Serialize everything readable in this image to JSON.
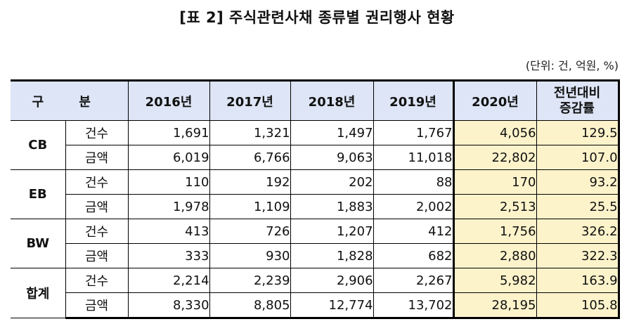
{
  "title": "[표  2] 주식관련사채 종류별 권리행사 현황",
  "unit": "(단위: 건, 억원, %)",
  "table": {
    "headers": {
      "category": "구 분",
      "years": [
        "2016년",
        "2017년",
        "2018년",
        "2019년",
        "2020년"
      ],
      "change": "전년대비\n증감률",
      "change_line1": "전년대비",
      "change_line2": "증감률"
    },
    "groups": [
      {
        "label": "CB",
        "rows": [
          {
            "label": "건수",
            "values": [
              "1,691",
              "1,321",
              "1,497",
              "1,767",
              "4,056"
            ],
            "change": "129.5"
          },
          {
            "label": "금액",
            "values": [
              "6,019",
              "6,766",
              "9,063",
              "11,018",
              "22,802"
            ],
            "change": "107.0"
          }
        ]
      },
      {
        "label": "EB",
        "rows": [
          {
            "label": "건수",
            "values": [
              "110",
              "192",
              "202",
              "88",
              "170"
            ],
            "change": "93.2"
          },
          {
            "label": "금액",
            "values": [
              "1,978",
              "1,109",
              "1,883",
              "2,002",
              "2,513"
            ],
            "change": "25.5"
          }
        ]
      },
      {
        "label": "BW",
        "rows": [
          {
            "label": "건수",
            "values": [
              "413",
              "726",
              "1,207",
              "412",
              "1,756"
            ],
            "change": "326.2"
          },
          {
            "label": "금액",
            "values": [
              "333",
              "930",
              "1,828",
              "682",
              "2,880"
            ],
            "change": "322.3"
          }
        ]
      },
      {
        "label": "합계",
        "rows": [
          {
            "label": "건수",
            "values": [
              "2,214",
              "2,239",
              "2,906",
              "2,267",
              "5,982"
            ],
            "change": "163.9"
          },
          {
            "label": "금액",
            "values": [
              "8,330",
              "8,805",
              "12,774",
              "13,702",
              "28,195"
            ],
            "change": "105.8"
          }
        ]
      }
    ]
  },
  "colors": {
    "header_bg": "#dde5f6",
    "highlight_bg": "#fdf3cb",
    "border": "#000000"
  }
}
